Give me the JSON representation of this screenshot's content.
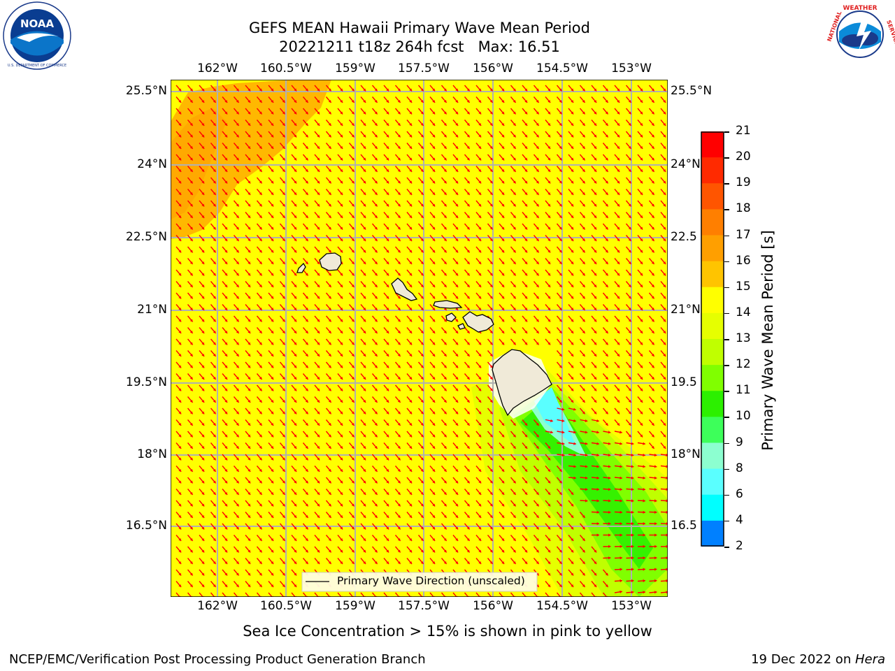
{
  "header": {
    "title_line1": "GEFS MEAN Hawaii Primary Wave Mean Period",
    "title_line2": "20221211 t18z 264h fcst   Max: 16.51"
  },
  "logos": {
    "left": {
      "name": "NOAA",
      "ring_text": "NATIONAL OCEANIC AND ATMOSPHERIC ADMINISTRATION · U.S. DEPARTMENT OF COMMERCE"
    },
    "right": {
      "name": "NATIONAL WEATHER SERVICE"
    }
  },
  "map": {
    "lon_labels": [
      "162°W",
      "160.5°W",
      "159°W",
      "157.5°W",
      "156°W",
      "154.5°W",
      "153°W"
    ],
    "lat_labels": [
      "25.5°N",
      "24°N",
      "22.5°N",
      "21°N",
      "19.5°N",
      "18°N",
      "16.5°N"
    ],
    "right_lat_labels": [
      "25.5°N",
      "24°N",
      "22.5",
      "21°N",
      "19.5",
      "18°N",
      "16.5"
    ],
    "legend_label": "Primary Wave Direction (unscaled)",
    "arrow_color": "#ff0000",
    "field_color_main": "#ffff00",
    "land_color": "#f0ead8"
  },
  "colorbar": {
    "label": "Primary Wave Mean Period [s]",
    "ticks": [
      "21",
      "20",
      "19",
      "18",
      "17",
      "16",
      "15",
      "14",
      "13",
      "12",
      "11",
      "10",
      "9",
      "8",
      "6",
      "4",
      "2"
    ],
    "colors": [
      "#ff0000",
      "#ff2a00",
      "#ff5500",
      "#ff7f00",
      "#ff9f00",
      "#ffc400",
      "#ffff00",
      "#e6ff00",
      "#c0ff00",
      "#80ff00",
      "#2cf000",
      "#3dff5a",
      "#8cffd0",
      "#5affff",
      "#00ffff",
      "#0080ff",
      "#0000ff"
    ]
  },
  "subcaption": "Sea Ice Concentration > 15% is shown in pink to yellow",
  "footer": {
    "left": "NCEP/EMC/Verification Post Processing Product Generation Branch",
    "right_date": "19 Dec 2022 on ",
    "right_host": "Hera"
  }
}
